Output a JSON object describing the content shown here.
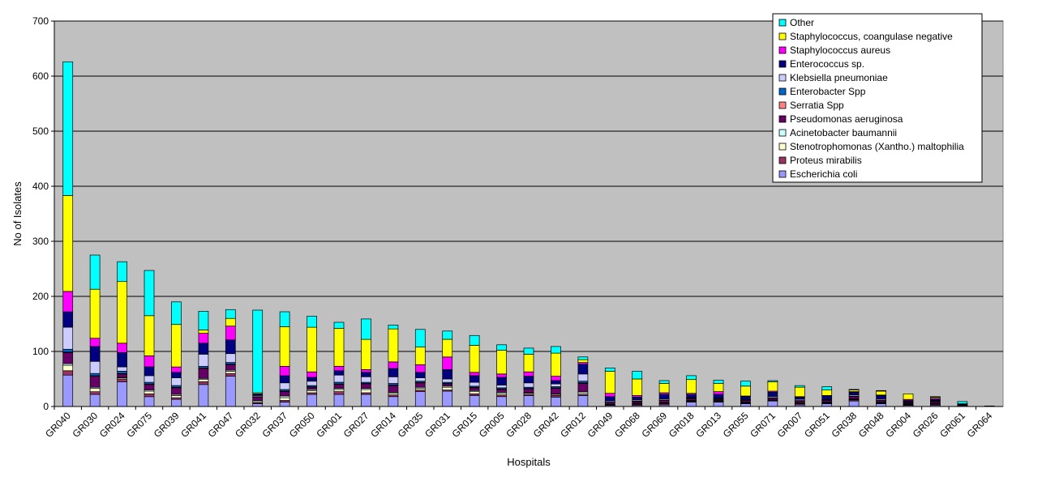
{
  "chart_data": {
    "type": "bar",
    "stacked": true,
    "xlabel": "Hospitals",
    "ylabel": "No of Isolates",
    "ylim": [
      0,
      700
    ],
    "yticks": [
      0,
      100,
      200,
      300,
      400,
      500,
      600,
      700
    ],
    "grid": true,
    "legend_position": "top-right",
    "plot_background": "#c0c0c0",
    "categories": [
      "GR040",
      "GR030",
      "GR024",
      "GR075",
      "GR039",
      "GR041",
      "GR047",
      "GR032",
      "GR037",
      "GR050",
      "GR001",
      "GR027",
      "GR014",
      "GR035",
      "GR031",
      "GR015",
      "GR005",
      "GR028",
      "GR042",
      "GR012",
      "GR049",
      "GR068",
      "GR069",
      "GR018",
      "GR013",
      "GR055",
      "GR071",
      "GR007",
      "GR051",
      "GR038",
      "GR048",
      "GR004",
      "GR026",
      "GR061",
      "GR064"
    ],
    "series": [
      {
        "name": "Escherichia coli",
        "color": "#9999ff",
        "values": [
          57,
          22,
          45,
          18,
          13,
          40,
          55,
          5,
          8,
          22,
          22,
          22,
          18,
          27,
          28,
          20,
          18,
          20,
          17,
          20,
          2,
          2,
          3,
          8,
          8,
          5,
          10,
          3,
          5,
          10,
          5,
          2,
          2,
          0,
          0
        ]
      },
      {
        "name": "Proteus mirabilis",
        "color": "#993366",
        "values": [
          8,
          5,
          5,
          5,
          3,
          5,
          5,
          2,
          3,
          3,
          5,
          3,
          3,
          3,
          2,
          3,
          3,
          2,
          3,
          2,
          0,
          2,
          2,
          1,
          1,
          1,
          0,
          2,
          1,
          2,
          1,
          1,
          2,
          0,
          0
        ]
      },
      {
        "name": "Stenotrophomonas (Xantho.) maltophilia",
        "color": "#ffffcc",
        "values": [
          10,
          6,
          2,
          5,
          4,
          4,
          4,
          2,
          5,
          4,
          4,
          6,
          3,
          3,
          5,
          4,
          3,
          2,
          2,
          3,
          1,
          1,
          1,
          1,
          1,
          1,
          1,
          1,
          1,
          1,
          1,
          1,
          1,
          0,
          0
        ]
      },
      {
        "name": "Acinetobacter baumannii",
        "color": "#ccffff",
        "values": [
          3,
          2,
          1,
          2,
          2,
          2,
          2,
          2,
          3,
          2,
          2,
          2,
          2,
          2,
          2,
          2,
          2,
          1,
          1,
          2,
          1,
          1,
          1,
          1,
          1,
          1,
          1,
          1,
          1,
          1,
          1,
          1,
          1,
          0,
          0
        ]
      },
      {
        "name": "Pseudomonas aeruginosa",
        "color": "#660066",
        "values": [
          20,
          20,
          6,
          10,
          12,
          18,
          10,
          6,
          8,
          4,
          7,
          8,
          12,
          8,
          4,
          5,
          5,
          7,
          10,
          15,
          3,
          3,
          4,
          3,
          2,
          3,
          3,
          3,
          3,
          4,
          3,
          2,
          3,
          2,
          0
        ]
      },
      {
        "name": "Serratia Spp",
        "color": "#ff8080",
        "values": [
          1,
          1,
          1,
          1,
          1,
          1,
          1,
          0,
          1,
          1,
          1,
          1,
          1,
          1,
          1,
          1,
          1,
          1,
          1,
          1,
          0,
          0,
          0,
          0,
          0,
          0,
          0,
          0,
          0,
          0,
          0,
          0,
          0,
          0,
          0
        ]
      },
      {
        "name": "Enterobacter Spp",
        "color": "#0066cc",
        "values": [
          5,
          4,
          4,
          3,
          3,
          3,
          3,
          1,
          3,
          2,
          3,
          2,
          3,
          2,
          2,
          2,
          2,
          2,
          2,
          3,
          1,
          1,
          1,
          1,
          1,
          1,
          1,
          1,
          1,
          1,
          1,
          1,
          1,
          0,
          0
        ]
      },
      {
        "name": "Klebsiella pneumoniae",
        "color": "#ccccff",
        "values": [
          40,
          22,
          8,
          12,
          14,
          22,
          16,
          2,
          12,
          8,
          13,
          10,
          12,
          6,
          6,
          7,
          5,
          8,
          5,
          13,
          2,
          2,
          2,
          1,
          1,
          1,
          2,
          2,
          1,
          2,
          2,
          1,
          1,
          1,
          0
        ]
      },
      {
        "name": "Enterococcus sp.",
        "color": "#000080",
        "values": [
          28,
          27,
          26,
          16,
          10,
          20,
          25,
          3,
          13,
          7,
          8,
          8,
          15,
          10,
          17,
          12,
          14,
          12,
          6,
          18,
          8,
          5,
          8,
          6,
          7,
          5,
          8,
          4,
          6,
          5,
          6,
          2,
          2,
          1,
          1
        ]
      },
      {
        "name": "Staphylococcus aureus",
        "color": "#ff00ff",
        "values": [
          37,
          15,
          17,
          20,
          10,
          18,
          25,
          0,
          17,
          10,
          8,
          5,
          12,
          14,
          23,
          6,
          6,
          8,
          8,
          3,
          6,
          3,
          3,
          2,
          5,
          1,
          2,
          1,
          1,
          1,
          1,
          2,
          2,
          0,
          0
        ]
      },
      {
        "name": "Staphylococcus, coangulase negative",
        "color": "#ffff00",
        "values": [
          174,
          89,
          112,
          73,
          77,
          6,
          14,
          2,
          72,
          81,
          69,
          55,
          60,
          32,
          32,
          49,
          43,
          32,
          42,
          5,
          40,
          30,
          17,
          25,
          15,
          18,
          17,
          17,
          10,
          3,
          7,
          10,
          2,
          1,
          0
        ]
      },
      {
        "name": "Other",
        "color": "#00ffff",
        "values": [
          243,
          62,
          36,
          82,
          41,
          34,
          16,
          150,
          27,
          20,
          11,
          37,
          7,
          32,
          15,
          18,
          10,
          11,
          12,
          5,
          6,
          14,
          5,
          7,
          6,
          9,
          2,
          3,
          6,
          1,
          1,
          0,
          1,
          4,
          0
        ]
      }
    ]
  }
}
